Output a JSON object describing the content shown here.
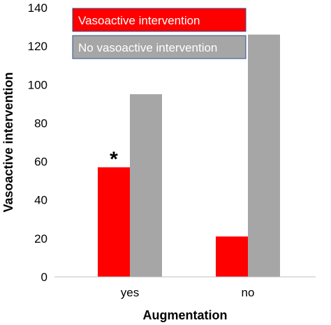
{
  "chart_data": {
    "type": "bar",
    "categories": [
      "yes",
      "no"
    ],
    "series": [
      {
        "name": "Vasoactive intervention",
        "color": "#ff0000",
        "values": [
          57,
          21
        ]
      },
      {
        "name": "No vasoactive intervention",
        "color": "#a6a6a6",
        "values": [
          95,
          126
        ]
      }
    ],
    "title": "",
    "xlabel": "Augmentation",
    "ylabel": "Vasoactive intervention",
    "ylim": [
      0,
      140
    ],
    "yticks": [
      "0",
      "20",
      "40",
      "60",
      "80",
      "100",
      "120",
      "140"
    ],
    "grid": false,
    "legend": "top-left",
    "annotations": [
      {
        "text": "*",
        "category": "yes",
        "series": 0
      }
    ]
  }
}
